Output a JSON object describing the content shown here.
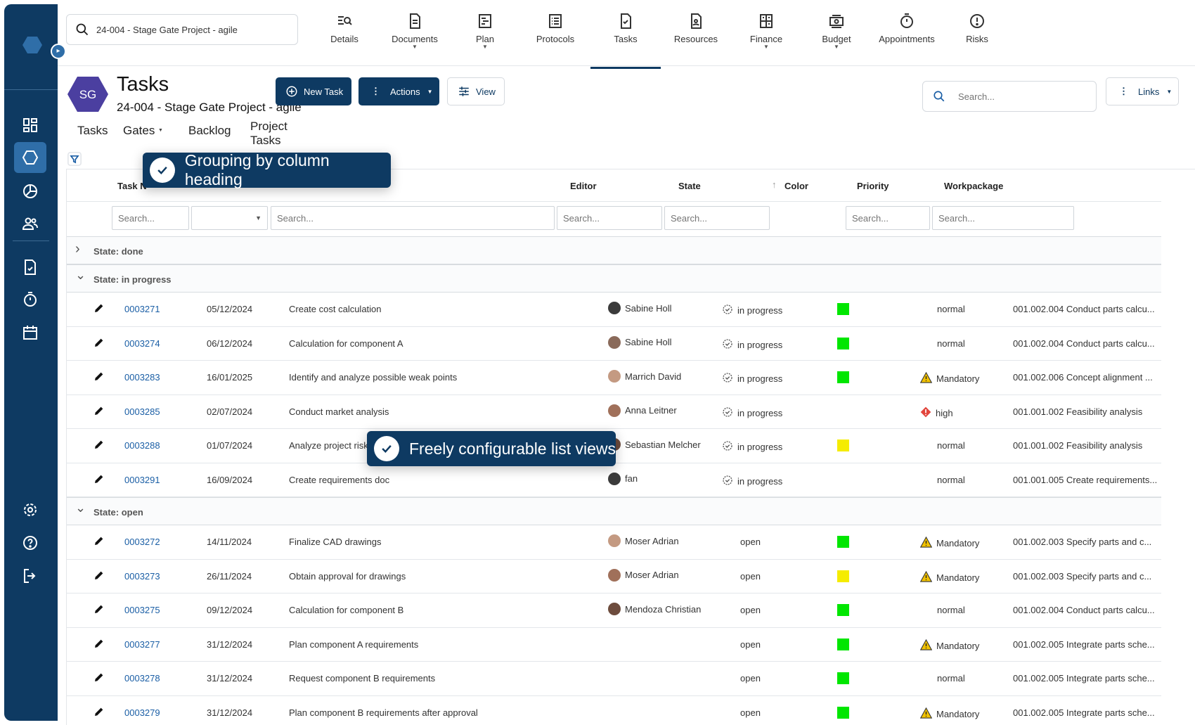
{
  "sidebar": {
    "expand_icon": "chevron-right-icon"
  },
  "project_search": {
    "value": "24-004 - Stage Gate Project - agile"
  },
  "topnav": [
    {
      "label": "Details",
      "icon": "details-icon",
      "dropdown": false
    },
    {
      "label": "Documents",
      "icon": "document-icon",
      "dropdown": true
    },
    {
      "label": "Plan",
      "icon": "plan-icon",
      "dropdown": true
    },
    {
      "label": "Protocols",
      "icon": "protocol-icon",
      "dropdown": false
    },
    {
      "label": "Tasks",
      "icon": "tasks-icon",
      "dropdown": false,
      "active": true
    },
    {
      "label": "Resources",
      "icon": "resources-icon",
      "dropdown": false
    },
    {
      "label": "Finance",
      "icon": "finance-icon",
      "dropdown": true
    },
    {
      "label": "Budget",
      "icon": "budget-icon",
      "dropdown": true
    },
    {
      "label": "Appointments",
      "icon": "stopwatch-icon",
      "dropdown": false
    },
    {
      "label": "Risks",
      "icon": "alert-icon",
      "dropdown": false
    }
  ],
  "header": {
    "badge": "SG",
    "title": "Tasks",
    "subtitle": "24-004 - Stage Gate Project - agile",
    "new_task": "New Task",
    "actions": "Actions",
    "view": "View",
    "search_placeholder": "Search...",
    "links": "Links"
  },
  "subtabs": [
    "Tasks",
    "Gates",
    "Backlog",
    "Project Tasks"
  ],
  "columns": {
    "task": "Task N",
    "editor": "Editor",
    "state": "State",
    "color": "Color",
    "priority": "Priority",
    "workpackage": "Workpackage"
  },
  "filter_placeholder": "Search...",
  "groups": [
    {
      "label": "State: done",
      "expanded": false,
      "rows": []
    },
    {
      "label": "State: in progress",
      "expanded": true,
      "rows": [
        {
          "id": "0003271",
          "date": "05/12/2024",
          "name": "Create cost calculation",
          "editor": "Sabine Holl",
          "state": "in progress",
          "color": "#00e600",
          "priority": "normal",
          "prio_icon": "",
          "wp": "001.002.004 Conduct parts calcu..."
        },
        {
          "id": "0003274",
          "date": "06/12/2024",
          "name": "Calculation for component A",
          "editor": "Sabine Holl",
          "state": "in progress",
          "color": "#00e600",
          "priority": "normal",
          "prio_icon": "",
          "wp": "001.002.004 Conduct parts calcu..."
        },
        {
          "id": "0003283",
          "date": "16/01/2025",
          "name": "Identify and analyze possible weak points",
          "editor": "Marrich David",
          "state": "in progress",
          "color": "#00e600",
          "priority": "Mandatory",
          "prio_icon": "warning",
          "wp": "001.002.006 Concept alignment ..."
        },
        {
          "id": "0003285",
          "date": "02/07/2024",
          "name": "Conduct market analysis",
          "editor": "Anna Leitner",
          "state": "in progress",
          "color": "",
          "priority": "high",
          "prio_icon": "high",
          "wp": "001.001.002 Feasibility analysis"
        },
        {
          "id": "0003288",
          "date": "01/07/2024",
          "name": "Analyze project risks",
          "editor": "Sebastian Melcher",
          "state": "in progress",
          "color": "#f5ec00",
          "priority": "normal",
          "prio_icon": "",
          "wp": "001.001.002 Feasibility analysis"
        },
        {
          "id": "0003291",
          "date": "16/09/2024",
          "name": "Create requirements doc",
          "editor": "fan",
          "state": "in progress",
          "color": "",
          "priority": "normal",
          "prio_icon": "",
          "wp": "001.001.005 Create requirements..."
        }
      ]
    },
    {
      "label": "State: open",
      "expanded": true,
      "rows": [
        {
          "id": "0003272",
          "date": "14/11/2024",
          "name": "Finalize CAD drawings",
          "editor": "Moser Adrian",
          "state": "open",
          "color": "#00e600",
          "priority": "Mandatory",
          "prio_icon": "warning",
          "wp": "001.002.003 Specify parts and c..."
        },
        {
          "id": "0003273",
          "date": "26/11/2024",
          "name": "Obtain approval for drawings",
          "editor": "Moser Adrian",
          "state": "open",
          "color": "#f5ec00",
          "priority": "Mandatory",
          "prio_icon": "warning",
          "wp": "001.002.003 Specify parts and c..."
        },
        {
          "id": "0003275",
          "date": "09/12/2024",
          "name": "Calculation for component B",
          "editor": "Mendoza Christian",
          "state": "open",
          "color": "#00e600",
          "priority": "normal",
          "prio_icon": "",
          "wp": "001.002.004 Conduct parts calcu..."
        },
        {
          "id": "0003277",
          "date": "31/12/2024",
          "name": "Plan component A requirements",
          "editor": "",
          "state": "open",
          "color": "#00e600",
          "priority": "Mandatory",
          "prio_icon": "warning",
          "wp": "001.002.005 Integrate parts sche..."
        },
        {
          "id": "0003278",
          "date": "31/12/2024",
          "name": "Request component B requirements",
          "editor": "",
          "state": "open",
          "color": "#00e600",
          "priority": "normal",
          "prio_icon": "",
          "wp": "001.002.005 Integrate parts sche..."
        },
        {
          "id": "0003279",
          "date": "31/12/2024",
          "name": "Plan component B requirements after approval",
          "editor": "",
          "state": "open",
          "color": "#00e600",
          "priority": "Mandatory",
          "prio_icon": "warning",
          "wp": "001.002.005 Integrate parts sche..."
        }
      ]
    }
  ],
  "callouts": {
    "grouping": "Grouping by column heading",
    "views": "Freely configurable list views"
  },
  "colors": {
    "brand": "#0e3a62",
    "accent": "#2f6ea8",
    "link": "#1a5ea5"
  }
}
